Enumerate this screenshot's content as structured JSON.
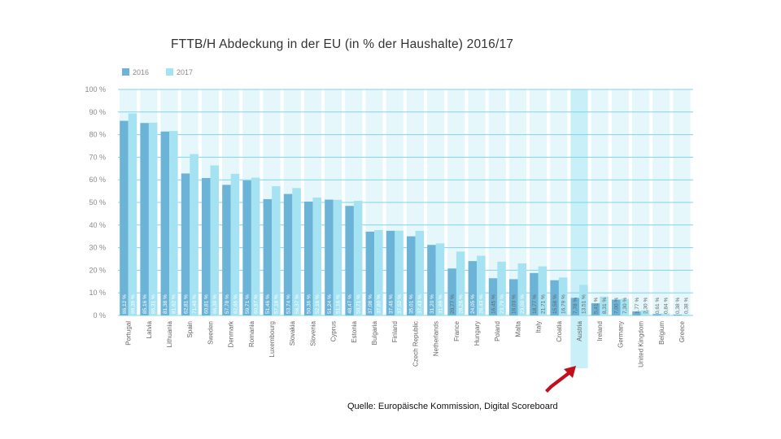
{
  "title": "FTTB/H Abdeckung in der EU (in % der Haushalte) 2016/17",
  "source": "Quelle: Europäische Kommission, Digital Scoreboard",
  "colors": {
    "series_2016": "#6bb4d8",
    "series_2017": "#a6e3f2",
    "grid": "#7fd3ea",
    "column_band": "#e6f7fb",
    "highlight": "#c9eff8",
    "arrow": "#c0101a"
  },
  "highlight_category": "Austria",
  "chart_data": {
    "type": "bar",
    "title": "FTTB/H Abdeckung in der EU (in % der Haushalte) 2016/17",
    "xlabel": "",
    "ylabel": "",
    "ylim": [
      0,
      100
    ],
    "yticks": [
      "0 %",
      "10 %",
      "20 %",
      "30 %",
      "40 %",
      "50 %",
      "60 %",
      "70 %",
      "80 %",
      "90 %",
      "100 %"
    ],
    "grid": true,
    "legend": "top-left",
    "categories": [
      "Portugal",
      "Latvia",
      "Lithuania",
      "Spain",
      "Sweden",
      "Denmark",
      "Romania",
      "Luxembourg",
      "Slovakia",
      "Slovenia",
      "Cyprus",
      "Estonia",
      "Bulgaria",
      "Finland",
      "Czech Republic",
      "Netherlands",
      "France",
      "Hungary",
      "Poland",
      "Malta",
      "Italy",
      "Croatia",
      "Austria",
      "Ireland",
      "Germany",
      "United Kingdom",
      "Belgium",
      "Greece"
    ],
    "series": [
      {
        "name": "2016",
        "values": [
          86.12,
          85.16,
          81.38,
          62.81,
          60.81,
          57.78,
          59.71,
          51.46,
          53.74,
          50.36,
          51.24,
          48.47,
          37.08,
          37.46,
          35.01,
          31.2,
          20.77,
          24.05,
          16.45,
          16.03,
          18.77,
          15.58,
          7.78,
          5.41,
          7.0,
          1.77,
          0.61,
          0.38
        ],
        "labels": [
          "86,12 %",
          "85,16 %",
          "81,38 %",
          "62,81 %",
          "60,81 %",
          "57,78 %",
          "59,71 %",
          "51,46 %",
          "53,74 %",
          "50,36 %",
          "51,24 %",
          "48,47 %",
          "37,08 %",
          "37,46 %",
          "35,01 %",
          "31,20 %",
          "20,77 %",
          "24,05 %",
          "16,45 %",
          "16,03 %",
          "18,77 %",
          "15,58 %",
          "7,78 %",
          "5,41 %",
          "7,00 %",
          "1,77 %",
          "0,61 %",
          "0,38 %"
        ]
      },
      {
        "name": "2017",
        "values": [
          89.39,
          85.31,
          81.62,
          71.4,
          66.39,
          62.65,
          60.97,
          57.18,
          56.37,
          52.16,
          51.16,
          50.71,
          37.8,
          37.52,
          37.43,
          31.89,
          28.26,
          26.43,
          23.79,
          23.0,
          21.71,
          16.79,
          13.51,
          8.31,
          7.3,
          2.3,
          0.84,
          0.38
        ],
        "labels": [
          "89,39 %",
          "85,31 %",
          "81,62 %",
          "71,40 %",
          "66,39 %",
          "62,65 %",
          "60,97 %",
          "57,18 %",
          "56,37 %",
          "52,16 %",
          "51,16 %",
          "50,71 %",
          "37,80 %",
          "37,52 %",
          "37,43 %",
          "31,89 %",
          "28,26 %",
          "26,43 %",
          "23,79 %",
          "23,00 %",
          "21,71 %",
          "16,79 %",
          "13,51 %",
          "8,31 %",
          "7,30 %",
          "2,30 %",
          "0,84 %",
          "0,38 %"
        ]
      }
    ]
  }
}
